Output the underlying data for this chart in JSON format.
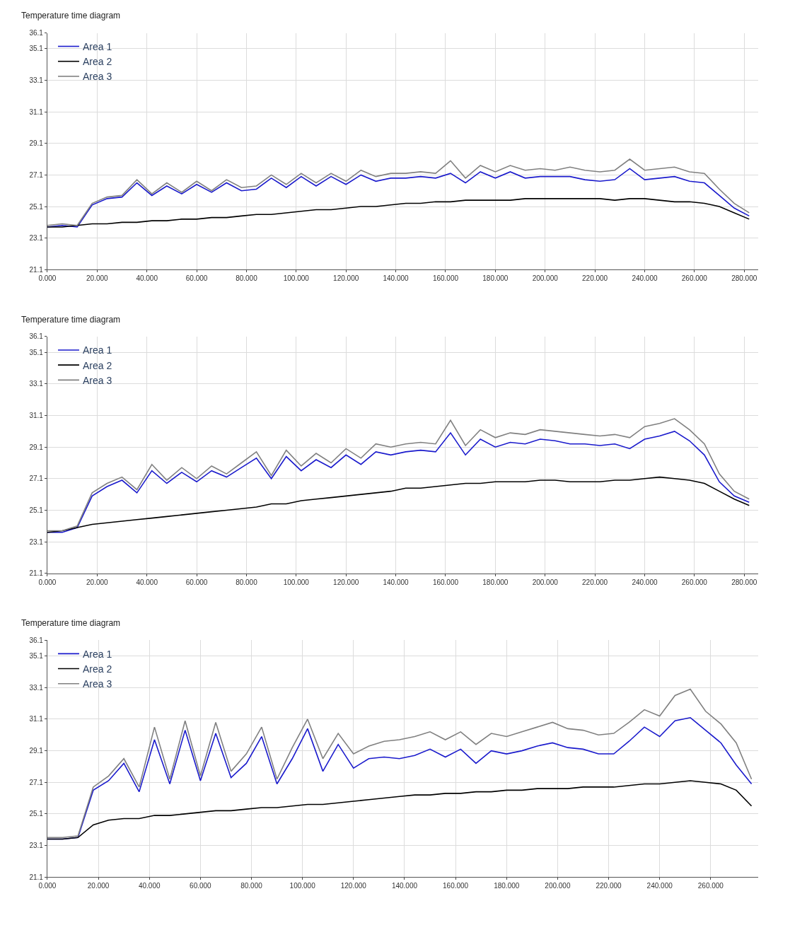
{
  "chart_data": [
    {
      "type": "line",
      "title": "Temperature time diagram",
      "legend": "top left",
      "grid": true,
      "marker": "none",
      "line_style": "solid",
      "x": [
        0,
        6,
        12,
        18,
        24,
        30,
        36,
        42,
        48,
        54,
        60,
        66,
        72,
        78,
        84,
        90,
        96,
        102,
        108,
        114,
        120,
        126,
        132,
        138,
        144,
        150,
        156,
        162,
        168,
        174,
        180,
        186,
        192,
        198,
        204,
        210,
        216,
        222,
        228,
        234,
        240,
        246,
        252,
        258,
        264,
        270,
        276,
        282
      ],
      "xlim": [
        0,
        285.5
      ],
      "ylim": [
        21.1,
        36.1
      ],
      "xticks": [
        {
          "value": 0,
          "label": "0.000"
        },
        {
          "value": 20,
          "label": "20.000"
        },
        {
          "value": 40,
          "label": "40.000"
        },
        {
          "value": 60,
          "label": "60.000"
        },
        {
          "value": 80,
          "label": "80.000"
        },
        {
          "value": 100,
          "label": "100.000"
        },
        {
          "value": 120,
          "label": "120.000"
        },
        {
          "value": 140,
          "label": "140.000"
        },
        {
          "value": 160,
          "label": "160.000"
        },
        {
          "value": 180,
          "label": "180.000"
        },
        {
          "value": 200,
          "label": "200.000"
        },
        {
          "value": 220,
          "label": "220.000"
        },
        {
          "value": 240,
          "label": "240.000"
        },
        {
          "value": 260,
          "label": "260.000"
        },
        {
          "value": 280,
          "label": "280.000"
        }
      ],
      "yticks": [
        21.1,
        23.1,
        25.1,
        27.1,
        29.1,
        31.1,
        33.1,
        35.1,
        36.1
      ],
      "series": [
        {
          "name": "Area 1",
          "color": "#1a1acc",
          "values": [
            23.8,
            23.9,
            23.8,
            25.2,
            25.6,
            25.7,
            26.6,
            25.8,
            26.4,
            25.9,
            26.5,
            26.0,
            26.6,
            26.1,
            26.2,
            26.9,
            26.3,
            27.0,
            26.4,
            27.0,
            26.5,
            27.1,
            26.7,
            26.9,
            26.9,
            27.0,
            26.9,
            27.2,
            26.6,
            27.3,
            26.9,
            27.3,
            26.9,
            27.0,
            27.0,
            27.0,
            26.8,
            26.7,
            26.8,
            27.5,
            26.8,
            26.9,
            27.0,
            26.7,
            26.6,
            25.8,
            25.0,
            24.5
          ]
        },
        {
          "name": "Area 2",
          "color": "#000000",
          "values": [
            23.8,
            23.8,
            23.9,
            24.0,
            24.0,
            24.1,
            24.1,
            24.2,
            24.2,
            24.3,
            24.3,
            24.4,
            24.4,
            24.5,
            24.6,
            24.6,
            24.7,
            24.8,
            24.9,
            24.9,
            25.0,
            25.1,
            25.1,
            25.2,
            25.3,
            25.3,
            25.4,
            25.4,
            25.5,
            25.5,
            25.5,
            25.5,
            25.6,
            25.6,
            25.6,
            25.6,
            25.6,
            25.6,
            25.5,
            25.6,
            25.6,
            25.5,
            25.4,
            25.4,
            25.3,
            25.1,
            24.7,
            24.3
          ]
        },
        {
          "name": "Area 3",
          "color": "#808080",
          "values": [
            23.9,
            24.0,
            23.9,
            25.3,
            25.7,
            25.8,
            26.8,
            25.9,
            26.6,
            26.0,
            26.7,
            26.1,
            26.8,
            26.3,
            26.4,
            27.1,
            26.5,
            27.2,
            26.6,
            27.2,
            26.7,
            27.4,
            27.0,
            27.2,
            27.2,
            27.3,
            27.2,
            28.0,
            26.9,
            27.7,
            27.3,
            27.7,
            27.4,
            27.5,
            27.4,
            27.6,
            27.4,
            27.3,
            27.4,
            28.1,
            27.4,
            27.5,
            27.6,
            27.3,
            27.2,
            26.2,
            25.3,
            24.7
          ]
        }
      ]
    },
    {
      "type": "line",
      "title": "Temperature time diagram",
      "legend": "top left",
      "grid": true,
      "marker": "none",
      "line_style": "solid",
      "x": [
        0,
        6,
        12,
        18,
        24,
        30,
        36,
        42,
        48,
        54,
        60,
        66,
        72,
        78,
        84,
        90,
        96,
        102,
        108,
        114,
        120,
        126,
        132,
        138,
        144,
        150,
        156,
        162,
        168,
        174,
        180,
        186,
        192,
        198,
        204,
        210,
        216,
        222,
        228,
        234,
        240,
        246,
        252,
        258,
        264,
        270,
        276,
        282
      ],
      "xlim": [
        0,
        285.5
      ],
      "ylim": [
        21.1,
        36.1
      ],
      "xticks": [
        {
          "value": 0,
          "label": "0.000"
        },
        {
          "value": 20,
          "label": "20.000"
        },
        {
          "value": 40,
          "label": "40.000"
        },
        {
          "value": 60,
          "label": "60.000"
        },
        {
          "value": 80,
          "label": "80.000"
        },
        {
          "value": 100,
          "label": "100.000"
        },
        {
          "value": 120,
          "label": "120.000"
        },
        {
          "value": 140,
          "label": "140.000"
        },
        {
          "value": 160,
          "label": "160.000"
        },
        {
          "value": 180,
          "label": "180.000"
        },
        {
          "value": 200,
          "label": "200.000"
        },
        {
          "value": 220,
          "label": "220.000"
        },
        {
          "value": 240,
          "label": "240.000"
        },
        {
          "value": 260,
          "label": "260.000"
        },
        {
          "value": 280,
          "label": "280.000"
        }
      ],
      "yticks": [
        21.1,
        23.1,
        25.1,
        27.1,
        29.1,
        31.1,
        33.1,
        35.1,
        36.1
      ],
      "series": [
        {
          "name": "Area 1",
          "color": "#1a1acc",
          "values": [
            23.7,
            23.7,
            24.0,
            26.0,
            26.6,
            27.0,
            26.2,
            27.6,
            26.8,
            27.5,
            26.9,
            27.6,
            27.2,
            27.8,
            28.4,
            27.1,
            28.5,
            27.6,
            28.3,
            27.8,
            28.6,
            28.0,
            28.8,
            28.6,
            28.8,
            28.9,
            28.8,
            30.0,
            28.6,
            29.6,
            29.1,
            29.4,
            29.3,
            29.6,
            29.5,
            29.3,
            29.3,
            29.2,
            29.3,
            29.0,
            29.6,
            29.8,
            30.1,
            29.5,
            28.6,
            26.9,
            26.0,
            25.6
          ]
        },
        {
          "name": "Area 2",
          "color": "#000000",
          "values": [
            23.7,
            23.8,
            24.0,
            24.2,
            24.3,
            24.4,
            24.5,
            24.6,
            24.7,
            24.8,
            24.9,
            25.0,
            25.1,
            25.2,
            25.3,
            25.5,
            25.5,
            25.7,
            25.8,
            25.9,
            26.0,
            26.1,
            26.2,
            26.3,
            26.5,
            26.5,
            26.6,
            26.7,
            26.8,
            26.8,
            26.9,
            26.9,
            26.9,
            27.0,
            27.0,
            26.9,
            26.9,
            26.9,
            27.0,
            27.0,
            27.1,
            27.2,
            27.1,
            27.0,
            26.8,
            26.3,
            25.8,
            25.4
          ]
        },
        {
          "name": "Area 3",
          "color": "#808080",
          "values": [
            23.8,
            23.8,
            24.1,
            26.2,
            26.8,
            27.2,
            26.4,
            28.0,
            27.0,
            27.8,
            27.1,
            27.9,
            27.4,
            28.1,
            28.8,
            27.3,
            28.9,
            27.9,
            28.7,
            28.1,
            29.0,
            28.4,
            29.3,
            29.1,
            29.3,
            29.4,
            29.3,
            30.8,
            29.2,
            30.2,
            29.7,
            30.0,
            29.9,
            30.2,
            30.1,
            30.0,
            29.9,
            29.8,
            29.9,
            29.7,
            30.4,
            30.6,
            30.9,
            30.2,
            29.3,
            27.4,
            26.3,
            25.8
          ]
        }
      ]
    },
    {
      "type": "line",
      "title": "Temperature time diagram",
      "legend": "top left",
      "grid": true,
      "marker": "none",
      "line_style": "solid",
      "x": [
        0,
        6,
        12,
        18,
        24,
        30,
        36,
        42,
        48,
        54,
        60,
        66,
        72,
        78,
        84,
        90,
        96,
        102,
        108,
        114,
        120,
        126,
        132,
        138,
        144,
        150,
        156,
        162,
        168,
        174,
        180,
        186,
        192,
        198,
        204,
        210,
        216,
        222,
        228,
        234,
        240,
        246,
        252,
        258,
        264,
        270,
        276
      ],
      "xlim": [
        0,
        278.5
      ],
      "ylim": [
        21.1,
        36.1
      ],
      "xticks": [
        {
          "value": 0,
          "label": "0.000"
        },
        {
          "value": 20,
          "label": "20.000"
        },
        {
          "value": 40,
          "label": "40.000"
        },
        {
          "value": 60,
          "label": "60.000"
        },
        {
          "value": 80,
          "label": "80.000"
        },
        {
          "value": 100,
          "label": "100.000"
        },
        {
          "value": 120,
          "label": "120.000"
        },
        {
          "value": 140,
          "label": "140.000"
        },
        {
          "value": 160,
          "label": "160.000"
        },
        {
          "value": 180,
          "label": "180.000"
        },
        {
          "value": 200,
          "label": "200.000"
        },
        {
          "value": 220,
          "label": "220.000"
        },
        {
          "value": 240,
          "label": "240.000"
        },
        {
          "value": 260,
          "label": "260.000"
        }
      ],
      "yticks": [
        21.1,
        23.1,
        25.1,
        27.1,
        29.1,
        31.1,
        33.1,
        35.1,
        36.1
      ],
      "series": [
        {
          "name": "Area 1",
          "color": "#1a1acc",
          "values": [
            23.5,
            23.5,
            23.6,
            26.6,
            27.2,
            28.3,
            26.5,
            29.8,
            27.0,
            30.4,
            27.2,
            30.2,
            27.4,
            28.3,
            30.0,
            27.0,
            28.6,
            30.5,
            27.8,
            29.5,
            28.0,
            28.6,
            28.7,
            28.6,
            28.8,
            29.2,
            28.7,
            29.2,
            28.3,
            29.1,
            28.9,
            29.1,
            29.4,
            29.6,
            29.3,
            29.2,
            28.9,
            28.9,
            29.7,
            30.6,
            30.0,
            31.0,
            31.2,
            30.4,
            29.6,
            28.2,
            27.0
          ]
        },
        {
          "name": "Area 2",
          "color": "#000000",
          "values": [
            23.5,
            23.5,
            23.6,
            24.4,
            24.7,
            24.8,
            24.8,
            25.0,
            25.0,
            25.1,
            25.2,
            25.3,
            25.3,
            25.4,
            25.5,
            25.5,
            25.6,
            25.7,
            25.7,
            25.8,
            25.9,
            26.0,
            26.1,
            26.2,
            26.3,
            26.3,
            26.4,
            26.4,
            26.5,
            26.5,
            26.6,
            26.6,
            26.7,
            26.7,
            26.7,
            26.8,
            26.8,
            26.8,
            26.9,
            27.0,
            27.0,
            27.1,
            27.2,
            27.1,
            27.0,
            26.6,
            25.6
          ]
        },
        {
          "name": "Area 3",
          "color": "#808080",
          "values": [
            23.6,
            23.6,
            23.7,
            26.8,
            27.5,
            28.6,
            26.8,
            30.6,
            27.3,
            31.0,
            27.5,
            30.9,
            27.8,
            28.9,
            30.6,
            27.3,
            29.3,
            31.1,
            28.6,
            30.2,
            28.9,
            29.4,
            29.7,
            29.8,
            30.0,
            30.3,
            29.8,
            30.3,
            29.5,
            30.2,
            30.0,
            30.3,
            30.6,
            30.9,
            30.5,
            30.4,
            30.1,
            30.2,
            30.9,
            31.7,
            31.3,
            32.6,
            33.0,
            31.6,
            30.8,
            29.6,
            27.3
          ]
        }
      ]
    }
  ]
}
